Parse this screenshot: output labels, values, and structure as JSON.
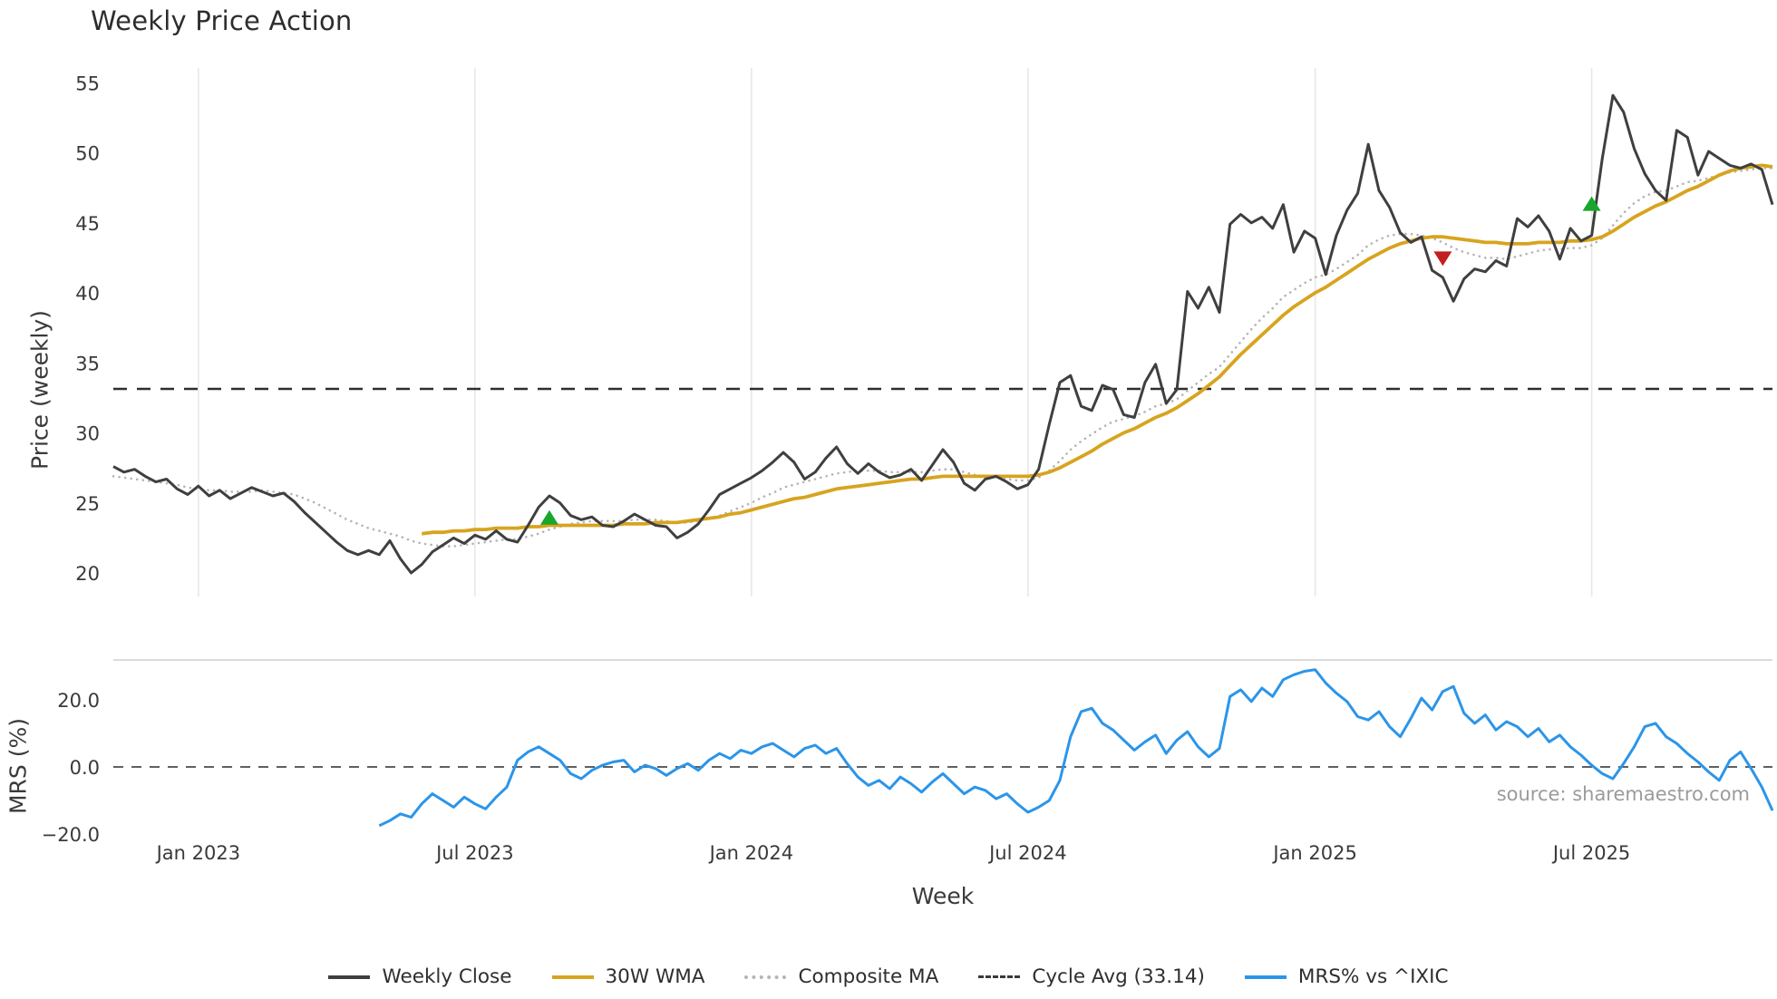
{
  "source": "source: sharemaestro.com",
  "colors": {
    "close": "#3f3f3f",
    "wma": "#d7a41f",
    "composite": "#b5b5b5",
    "cycle": "#2e2e2e",
    "mrs": "#2b95e9",
    "buy": "#18a62c",
    "sell": "#c41f1f",
    "grid": "#e7e7e7",
    "panel_border": "#cfcfcf",
    "zero": "#4a4a4a"
  },
  "legend": {
    "items": [
      {
        "label": "Weekly Close",
        "color": "#3f3f3f",
        "style": "solid"
      },
      {
        "label": "30W WMA",
        "color": "#d7a41f",
        "style": "solid"
      },
      {
        "label": "Composite MA",
        "color": "#b5b5b5",
        "style": "dotted"
      },
      {
        "label": "Cycle Avg (33.14)",
        "color": "#3a3a3a",
        "style": "dashed"
      },
      {
        "label": "MRS% vs ^IXIC",
        "color": "#2b95e9",
        "style": "solid"
      }
    ]
  },
  "chart_data": [
    {
      "type": "line",
      "title": "Weekly Price Action",
      "xlabel": "Week",
      "ylabel": "Price (weekly)",
      "ylim": [
        18.5,
        56.5
      ],
      "x_unit": "week_index",
      "n_points": 157,
      "grid": "vertical-only",
      "cycle_avg": 33.14,
      "yticks": [
        {
          "value": 55,
          "label": "55"
        },
        {
          "value": 50,
          "label": "50"
        },
        {
          "value": 45,
          "label": "45"
        },
        {
          "value": 40,
          "label": "40"
        },
        {
          "value": 35,
          "label": "35"
        },
        {
          "value": 30,
          "label": "30"
        },
        {
          "value": 25,
          "label": "25"
        },
        {
          "value": 20,
          "label": "20"
        }
      ],
      "xticks": [
        {
          "week": 8,
          "label": "Jan 2023"
        },
        {
          "week": 34,
          "label": "Jul 2023"
        },
        {
          "week": 60,
          "label": "Jan 2024"
        },
        {
          "week": 86,
          "label": "Jul 2024"
        },
        {
          "week": 113,
          "label": "Jan 2025"
        },
        {
          "week": 139,
          "label": "Jul 2025"
        }
      ],
      "markers": [
        {
          "type": "buy",
          "week": 41,
          "price": 23.9
        },
        {
          "type": "sell",
          "week": 125,
          "price": 42.5
        },
        {
          "type": "buy",
          "week": 139,
          "price": 46.3
        }
      ],
      "series": [
        {
          "name": "Weekly Close",
          "values": [
            27.6,
            27.2,
            27.4,
            26.9,
            26.5,
            26.7,
            26.0,
            25.6,
            26.2,
            25.5,
            25.9,
            25.3,
            25.7,
            26.1,
            25.8,
            25.5,
            25.7,
            25.1,
            24.3,
            23.6,
            22.9,
            22.2,
            21.6,
            21.3,
            21.6,
            21.3,
            22.3,
            21.0,
            20.0,
            20.6,
            21.5,
            22.0,
            22.5,
            22.1,
            22.7,
            22.4,
            23.0,
            22.4,
            22.2,
            23.4,
            24.7,
            25.5,
            25.0,
            24.1,
            23.8,
            24.0,
            23.4,
            23.3,
            23.7,
            24.2,
            23.8,
            23.4,
            23.3,
            22.5,
            22.9,
            23.5,
            24.5,
            25.6,
            26.0,
            26.4,
            26.8,
            27.3,
            27.9,
            28.6,
            27.9,
            26.7,
            27.2,
            28.2,
            29.0,
            27.8,
            27.1,
            27.8,
            27.2,
            26.8,
            27.0,
            27.4,
            26.6,
            27.7,
            28.8,
            27.9,
            26.4,
            25.9,
            26.7,
            26.9,
            26.5,
            26.0,
            26.3,
            27.4,
            30.6,
            33.6,
            34.1,
            31.9,
            31.6,
            33.4,
            33.1,
            31.3,
            31.1,
            33.6,
            34.9,
            32.1,
            33.1,
            40.1,
            38.9,
            40.4,
            38.6,
            44.9,
            45.6,
            45.0,
            45.4,
            44.6,
            46.3,
            42.9,
            44.4,
            43.9,
            41.3,
            44.1,
            45.9,
            47.1,
            50.6,
            47.3,
            46.1,
            44.3,
            43.6,
            44.0,
            41.6,
            41.1,
            39.4,
            41.0,
            41.7,
            41.5,
            42.3,
            41.9,
            45.3,
            44.7,
            45.5,
            44.4,
            42.4,
            44.6,
            43.7,
            44.1,
            49.6,
            54.1,
            52.9,
            50.3,
            48.5,
            47.3,
            46.6,
            51.6,
            51.1,
            48.4,
            50.1,
            49.6,
            49.1,
            48.9,
            49.2,
            48.8,
            46.3
          ]
        },
        {
          "name": "30W WMA",
          "values": [
            null,
            null,
            null,
            null,
            null,
            null,
            null,
            null,
            null,
            null,
            null,
            null,
            null,
            null,
            null,
            null,
            null,
            null,
            null,
            null,
            null,
            null,
            null,
            null,
            null,
            null,
            null,
            null,
            null,
            22.8,
            22.9,
            22.9,
            23.0,
            23.0,
            23.1,
            23.1,
            23.2,
            23.2,
            23.2,
            23.3,
            23.3,
            23.4,
            23.4,
            23.4,
            23.4,
            23.4,
            23.4,
            23.4,
            23.5,
            23.5,
            23.5,
            23.6,
            23.6,
            23.6,
            23.7,
            23.8,
            23.9,
            24.0,
            24.2,
            24.3,
            24.5,
            24.7,
            24.9,
            25.1,
            25.3,
            25.4,
            25.6,
            25.8,
            26.0,
            26.1,
            26.2,
            26.3,
            26.4,
            26.5,
            26.6,
            26.7,
            26.7,
            26.8,
            26.9,
            26.9,
            26.9,
            26.9,
            26.9,
            26.9,
            26.9,
            26.9,
            26.9,
            27.0,
            27.2,
            27.5,
            27.9,
            28.3,
            28.7,
            29.2,
            29.6,
            30.0,
            30.3,
            30.7,
            31.1,
            31.4,
            31.8,
            32.3,
            32.8,
            33.4,
            34.0,
            34.8,
            35.6,
            36.3,
            37.0,
            37.7,
            38.4,
            39.0,
            39.5,
            40.0,
            40.4,
            40.9,
            41.4,
            41.9,
            42.4,
            42.8,
            43.2,
            43.5,
            43.7,
            43.9,
            44.0,
            44.0,
            43.9,
            43.8,
            43.7,
            43.6,
            43.6,
            43.5,
            43.5,
            43.5,
            43.6,
            43.6,
            43.6,
            43.7,
            43.7,
            43.8,
            44.0,
            44.4,
            44.9,
            45.4,
            45.8,
            46.2,
            46.5,
            46.9,
            47.3,
            47.6,
            48.0,
            48.4,
            48.7,
            48.9,
            49.0,
            49.1,
            49.0
          ]
        },
        {
          "name": "Composite MA",
          "values": [
            26.9,
            26.8,
            26.7,
            26.6,
            26.5,
            26.4,
            26.3,
            26.1,
            26.0,
            25.9,
            25.9,
            25.8,
            25.8,
            25.8,
            25.9,
            25.8,
            25.7,
            25.6,
            25.3,
            25.0,
            24.6,
            24.2,
            23.8,
            23.5,
            23.2,
            23.0,
            22.8,
            22.6,
            22.3,
            22.1,
            22.0,
            21.9,
            21.9,
            22.0,
            22.1,
            22.2,
            22.3,
            22.4,
            22.4,
            22.6,
            22.8,
            23.1,
            23.3,
            23.5,
            23.6,
            23.7,
            23.7,
            23.7,
            23.7,
            23.8,
            23.8,
            23.8,
            23.7,
            23.6,
            23.6,
            23.7,
            23.9,
            24.1,
            24.4,
            24.7,
            25.0,
            25.4,
            25.7,
            26.1,
            26.3,
            26.5,
            26.7,
            26.9,
            27.1,
            27.2,
            27.3,
            27.3,
            27.3,
            27.2,
            27.2,
            27.2,
            27.2,
            27.3,
            27.4,
            27.4,
            27.2,
            27.0,
            26.9,
            26.8,
            26.7,
            26.6,
            26.6,
            26.8,
            27.3,
            28.0,
            28.8,
            29.4,
            29.9,
            30.4,
            30.8,
            31.0,
            31.2,
            31.5,
            31.9,
            32.1,
            32.4,
            33.0,
            33.6,
            34.2,
            34.7,
            35.6,
            36.5,
            37.4,
            38.2,
            38.9,
            39.7,
            40.2,
            40.7,
            41.1,
            41.3,
            41.7,
            42.2,
            42.7,
            43.4,
            43.8,
            44.1,
            44.2,
            44.2,
            44.1,
            43.9,
            43.6,
            43.2,
            42.9,
            42.7,
            42.5,
            42.5,
            42.4,
            42.6,
            42.8,
            43.0,
            43.1,
            43.1,
            43.2,
            43.2,
            43.4,
            43.9,
            44.8,
            45.7,
            46.4,
            46.9,
            47.2,
            47.3,
            47.6,
            47.9,
            48.0,
            48.2,
            48.4,
            48.6,
            48.7,
            48.8,
            48.9,
            48.9
          ]
        }
      ]
    },
    {
      "type": "line",
      "xlabel": "Week",
      "ylabel": "MRS (%)",
      "ylim": [
        -22,
        32
      ],
      "zero_line": 0,
      "yticks": [
        {
          "value": 20,
          "label": "20.0"
        },
        {
          "value": 0,
          "label": "0.0"
        },
        {
          "value": -20,
          "label": "−20.0"
        }
      ],
      "series": [
        {
          "name": "MRS% vs ^IXIC",
          "values": [
            null,
            null,
            null,
            null,
            null,
            null,
            null,
            null,
            null,
            null,
            null,
            null,
            null,
            null,
            null,
            null,
            null,
            null,
            null,
            null,
            null,
            null,
            null,
            null,
            null,
            -17.5,
            -16,
            -14,
            -15,
            -11,
            -8,
            -10,
            -12,
            -9,
            -11,
            -12.5,
            -9,
            -6,
            2,
            4.5,
            6,
            4,
            2,
            -2,
            -3.5,
            -1,
            0.5,
            1.5,
            2,
            -1.5,
            0.5,
            -0.5,
            -2.5,
            -0.5,
            1,
            -1,
            2,
            4,
            2.5,
            5,
            4,
            6,
            7,
            5,
            3,
            5.5,
            6.5,
            4,
            5.5,
            1,
            -3,
            -5.5,
            -4,
            -6.5,
            -3,
            -5,
            -7.5,
            -4.5,
            -2,
            -5,
            -8,
            -6,
            -7,
            -9.5,
            -8,
            -11,
            -13.5,
            -12,
            -10,
            -4,
            9,
            16.5,
            17.5,
            13,
            11,
            8,
            5,
            7.5,
            9.5,
            4,
            8,
            10.5,
            6,
            3,
            5.5,
            21,
            23,
            19.5,
            23.5,
            21,
            26,
            27.5,
            28.5,
            29,
            25,
            22,
            19.5,
            15,
            14,
            16.5,
            12,
            9,
            14.5,
            20.5,
            17,
            22.5,
            24,
            16,
            13,
            15.5,
            11,
            13.5,
            12,
            9,
            11.5,
            7.5,
            9.5,
            6,
            3.5,
            0.5,
            -2,
            -3.5,
            1,
            6,
            12,
            13,
            9,
            7,
            4,
            1.5,
            -1.5,
            -4,
            2,
            4.5,
            -0.5,
            -6,
            -13
          ]
        }
      ]
    }
  ]
}
